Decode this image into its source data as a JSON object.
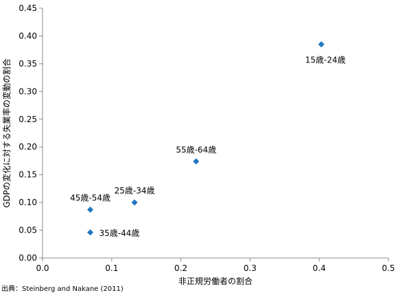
{
  "chart_data": {
    "type": "scatter",
    "title": "",
    "xlabel": "非正規労働者の割合",
    "ylabel": "GDPの変化に対する失業率の変動の割合",
    "xlim": [
      0,
      0.5
    ],
    "ylim": [
      0,
      0.45
    ],
    "xticks": [
      "0.0",
      "0.1",
      "0.2",
      "0.3",
      "0.4",
      "0.5"
    ],
    "yticks": [
      "0.00",
      "0.05",
      "0.10",
      "0.15",
      "0.20",
      "0.25",
      "0.30",
      "0.35",
      "0.40",
      "0.45"
    ],
    "grid": false,
    "marker": "diamond",
    "marker_color": "#1f77c4",
    "points": [
      {
        "label": "15歳-24歳",
        "x": 0.403,
        "y": 0.385,
        "label_pos": "below"
      },
      {
        "label": "55歳-64歳",
        "x": 0.222,
        "y": 0.174,
        "label_pos": "above"
      },
      {
        "label": "25歳-34歳",
        "x": 0.133,
        "y": 0.1,
        "label_pos": "above"
      },
      {
        "label": "45歳-54歳",
        "x": 0.069,
        "y": 0.087,
        "label_pos": "above"
      },
      {
        "label": "35歳-44歳",
        "x": 0.069,
        "y": 0.046,
        "label_pos": "right"
      }
    ]
  },
  "source_note": "出典：Steinberg and Nakane (2011)"
}
